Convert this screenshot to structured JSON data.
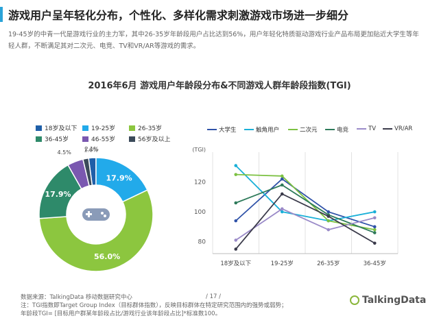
{
  "header": {
    "title": "游戏用户呈年轻化分布，个性化、多样化需求刺激游戏市场进一步细分",
    "intro": "19-45岁的中青一代是游戏行业的主力军，其中26-35岁年龄段用户占比达到56%，用户年轻化特质驱动游戏行业产品布局更加贴近大学生等年轻人群，不断满足其对二次元、电竞、TV和VR/AR等游戏的需求。"
  },
  "chart_title": "2016年6月 游戏用户年龄段分布&不同游戏人群年龄段指数(TGI)",
  "chart_data": [
    {
      "type": "pie",
      "categories": [
        "18岁及以下",
        "19-25岁",
        "26-35岁",
        "36-45岁",
        "46-55岁",
        "56岁及以上"
      ],
      "values": [
        2.1,
        17.9,
        56.0,
        17.9,
        4.5,
        1.6
      ],
      "value_labels": [
        "2.1%",
        "17.9%",
        "56.0%",
        "17.9%",
        "4.5%",
        "1.6%"
      ],
      "colors": [
        "#1f5fa8",
        "#22aaea",
        "#8cc63f",
        "#2e8a6a",
        "#7a58b0",
        "#3b4a5a"
      ],
      "center_icon": "gamepad-icon",
      "legend_position": "top-left"
    },
    {
      "type": "line",
      "categories": [
        "18岁及以下",
        "19-25岁",
        "26-35岁",
        "36-45岁"
      ],
      "ylabel": "(TGI)",
      "yticks": [
        80,
        100,
        120
      ],
      "ylim": [
        72,
        140
      ],
      "series": [
        {
          "name": "大学生",
          "color": "#2f52a8",
          "values": [
            94,
            122,
            100,
            90
          ]
        },
        {
          "name": "触角用户",
          "color": "#1ab0d8",
          "values": [
            131,
            100,
            94,
            100
          ]
        },
        {
          "name": "二次元",
          "color": "#7cc142",
          "values": [
            125,
            124,
            94,
            88
          ]
        },
        {
          "name": "电竞",
          "color": "#2e7a5a",
          "values": [
            106,
            118,
            98,
            86
          ]
        },
        {
          "name": "TV",
          "color": "#9a8ac8",
          "values": [
            81,
            102,
            88,
            96
          ]
        },
        {
          "name": "VR/AR",
          "color": "#3b3b4b",
          "values": [
            75,
            112,
            97,
            79
          ]
        }
      ],
      "legend_position": "top"
    }
  ],
  "footer": {
    "source": "数据来源：TalkingData 移动数据研究中心",
    "page": "/ 17 /",
    "note1": "注：TGI指数即Target Group Index（目标群体指数），反映目标群体在特定研究范围内的强势或弱势；",
    "note2": "年龄段TGI= [目标用户群某年龄段占比/游戏行业该年龄段占比]*标准数100。",
    "brand": "TalkingData"
  }
}
